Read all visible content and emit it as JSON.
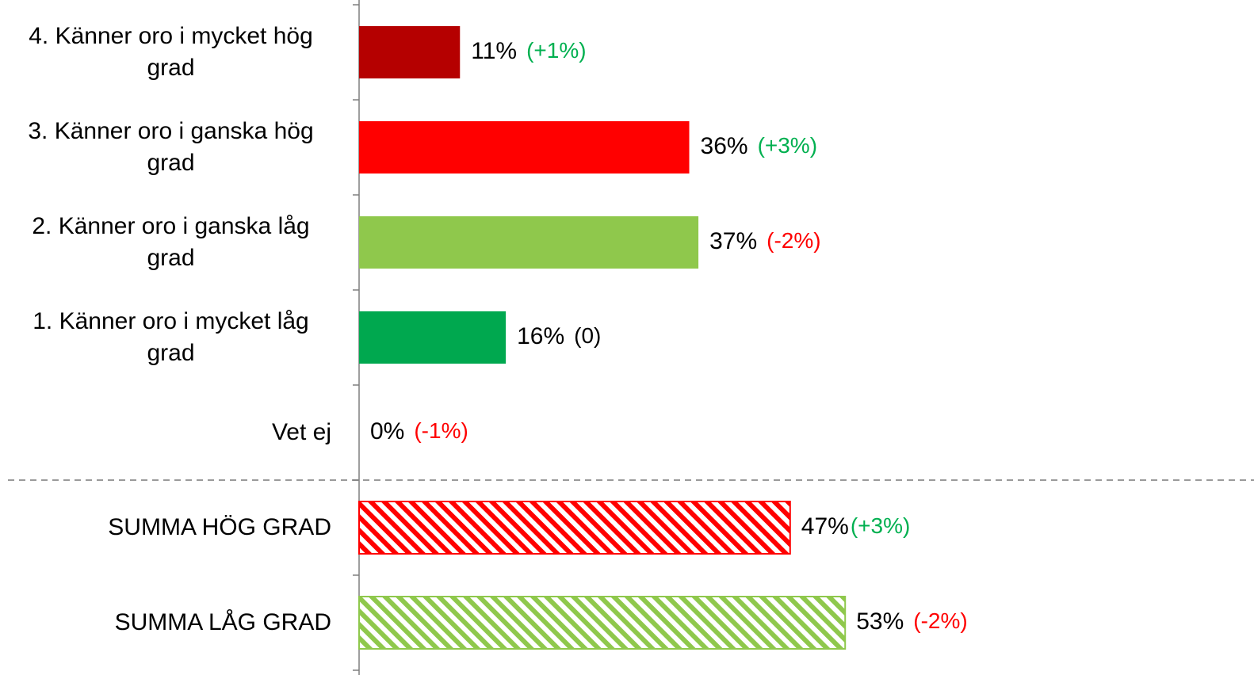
{
  "chart_data": {
    "type": "hbar",
    "categories": [
      "4. Känner oro i mycket hög grad",
      "3. Känner oro i ganska hög grad",
      "2. Känner oro i ganska låg grad",
      "1. Känner oro i mycket låg grad",
      "Vet ej",
      "SUMMA HÖG GRAD",
      "SUMMA LÅG GRAD"
    ],
    "values": [
      11,
      36,
      37,
      16,
      0,
      47,
      53
    ],
    "value_labels": [
      "11%",
      "36%",
      "37%",
      "16%",
      "0%",
      "47%",
      "53%"
    ],
    "colors": [
      "#b50000",
      "#ff0000",
      "#8fc84c",
      "#00a84f",
      "#7f7f7f",
      "#ff0000",
      "#8fc84c"
    ],
    "hatched": [
      false,
      false,
      false,
      false,
      false,
      true,
      true
    ],
    "changes": [
      "(+1%)",
      "(+3%)",
      "(-2%)",
      "(0)",
      "(-1%)",
      "(+3%)",
      "(-2%)"
    ],
    "change_colors": [
      "#00b050",
      "#00b050",
      "#ff0000",
      "#000000",
      "#ff0000",
      "#00b050",
      "#ff0000"
    ]
  }
}
